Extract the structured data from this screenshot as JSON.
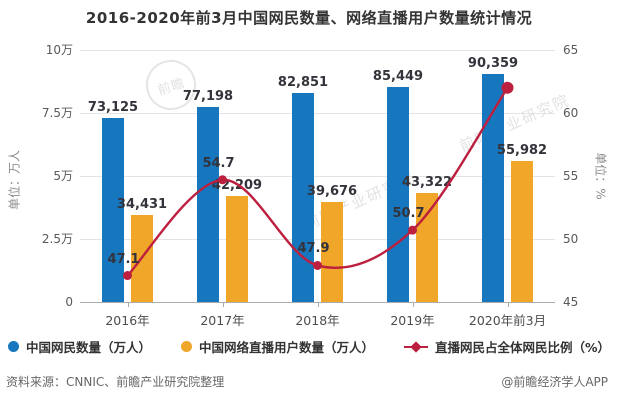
{
  "title": "2016-2020年前3月中国网民数量、网络直播用户数量统计情况",
  "chart_data": {
    "type": "bar",
    "subtype": "grouped bars with overlay line, dual y-axes",
    "categories": [
      "2016年",
      "2017年",
      "2018年",
      "2019年",
      "2020年前3月"
    ],
    "series": [
      {
        "name": "中国网民数量（万人）",
        "type": "bar",
        "color": "#1777be",
        "values": [
          73125,
          77198,
          82851,
          85449,
          90359
        ],
        "labels": [
          "73,125",
          "77,198",
          "82,851",
          "85,449",
          "90,359"
        ]
      },
      {
        "name": "中国网络直播用户数量（万人）",
        "type": "bar",
        "color": "#f0a629",
        "values": [
          34431,
          42209,
          39676,
          43322,
          55982
        ],
        "labels": [
          "34,431",
          "42,209",
          "39,676",
          "43,322",
          "55,982"
        ]
      },
      {
        "name": "直播网民占全体网民比例（%）",
        "type": "line",
        "color": "#bd1f3e",
        "values": [
          47.1,
          54.7,
          47.9,
          50.7,
          62.0
        ],
        "labels": [
          "47.1",
          "54.7",
          "47.9",
          "50.7",
          ""
        ]
      }
    ],
    "left_axis": {
      "label": "单位：万人",
      "min": 0,
      "max": 100000,
      "ticks": [
        "0",
        "2.5万",
        "5万",
        "7.5万",
        "10万"
      ]
    },
    "right_axis": {
      "label": "单位：%",
      "min": 45,
      "max": 65,
      "ticks": [
        "45",
        "50",
        "55",
        "60",
        "65"
      ]
    },
    "grid": true,
    "legend_position": "bottom"
  },
  "watermark": {
    "logo_text": "前瞻",
    "diagonal_text": "前瞻产业研究院"
  },
  "footer": {
    "source": "资料来源：CNNIC、前瞻产业研究院整理",
    "credit": "@前瞻经济学人APP"
  }
}
